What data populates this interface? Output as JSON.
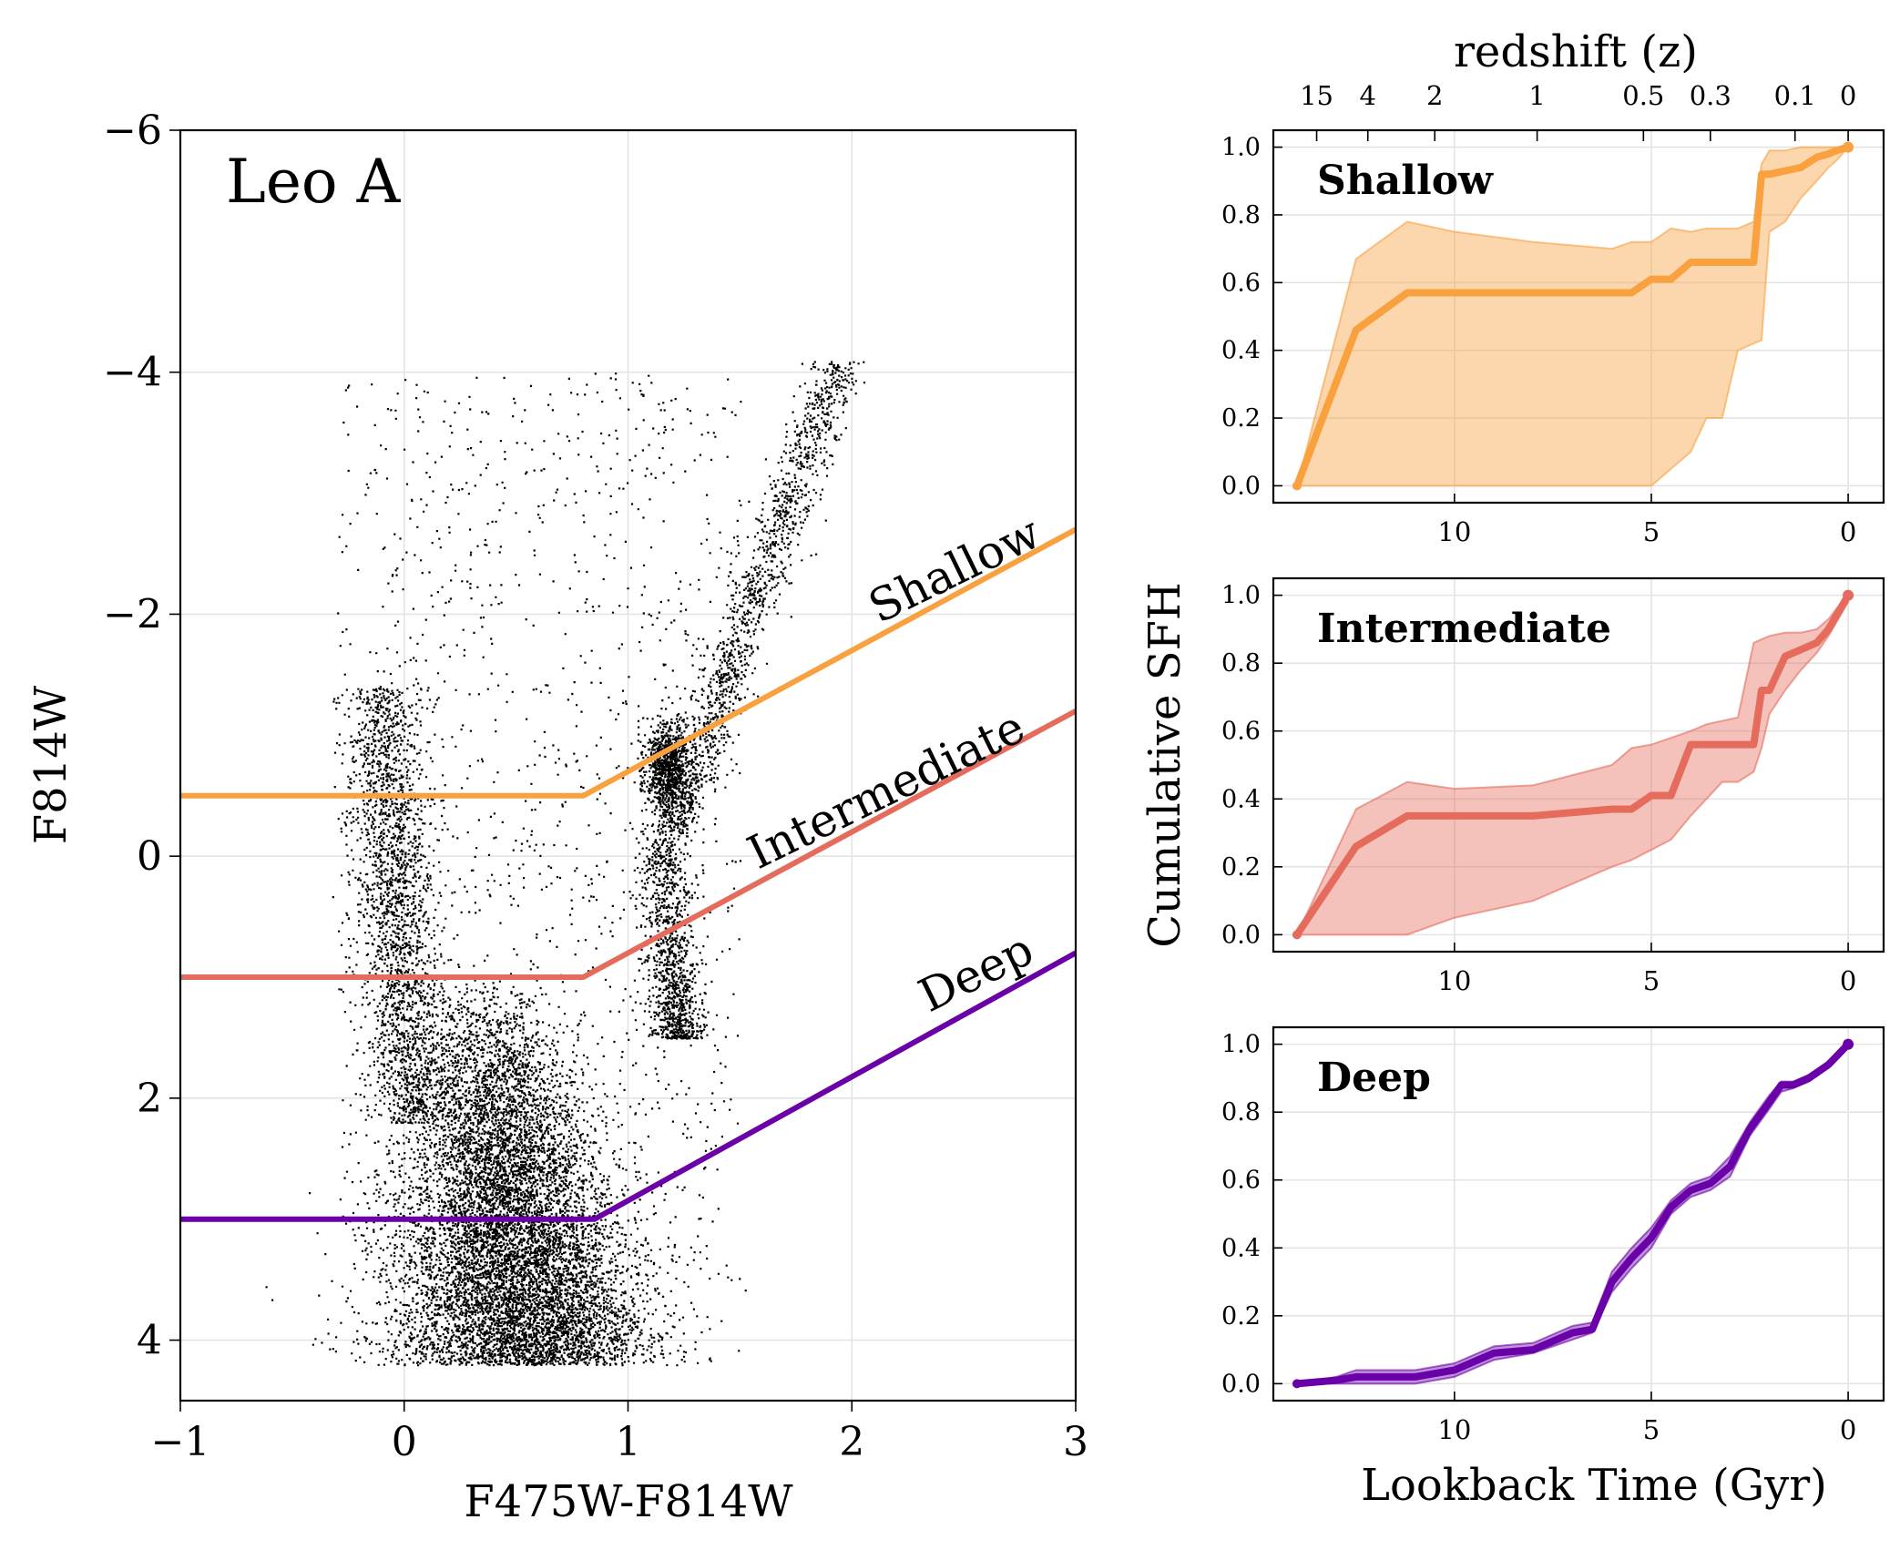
{
  "colors": {
    "shallow": "#F9A03F",
    "intermediate": "#E56B5D",
    "deep": "#6A00A8",
    "stars": "#000000"
  },
  "chart_data": [
    {
      "type": "scatter",
      "title": "Leo A",
      "xlabel": "F475W-F814W",
      "ylabel": "F814W",
      "xlim": [
        -1,
        3
      ],
      "ylim": [
        4.5,
        -6
      ],
      "y_inverted": true,
      "grid": true,
      "xticks": [
        "−1",
        "0",
        "1",
        "2",
        "3"
      ],
      "yticks": [
        "−6",
        "−4",
        "−2",
        "0",
        "2",
        "4"
      ],
      "density_features": [
        {
          "feature": "main sequence / lower RGB",
          "x": [
            0.1,
            0.9
          ],
          "y": [
            1.0,
            4.2
          ]
        },
        {
          "feature": "red clump",
          "x": [
            1.05,
            1.25
          ],
          "y": [
            -1.1,
            -0.4
          ]
        },
        {
          "feature": "red giant branch",
          "x": [
            1.1,
            2.2
          ],
          "y": [
            -4.0,
            1.5
          ]
        },
        {
          "feature": "blue plume",
          "x": [
            -0.2,
            0.1
          ],
          "y": [
            -1.2,
            2.0
          ]
        }
      ],
      "depth_cuts": [
        {
          "name": "Shallow",
          "knee_x": 0.8,
          "mag": -0.5,
          "end": [
            3.0,
            -2.7
          ]
        },
        {
          "name": "Intermediate",
          "knee_x": 0.8,
          "mag": 1.0,
          "end": [
            3.0,
            -1.2
          ]
        },
        {
          "name": "Deep",
          "knee_x": 0.85,
          "mag": 3.0,
          "end": [
            3.0,
            0.8
          ]
        }
      ]
    },
    {
      "type": "line",
      "ylabel": "Cumulative SFH",
      "xlabel": "Lookback Time (Gyr)",
      "top_axis_label": "redshift (z)",
      "redshift_ticks": [
        {
          "label": "15",
          "t": 13.5
        },
        {
          "label": "4",
          "t": 12.2
        },
        {
          "label": "2",
          "t": 10.5
        },
        {
          "label": "1",
          "t": 7.9
        },
        {
          "label": "0.5",
          "t": 5.2
        },
        {
          "label": "0.3",
          "t": 3.5
        },
        {
          "label": "0.1",
          "t": 1.35
        },
        {
          "label": "0",
          "t": 0.0
        }
      ],
      "xlim": [
        14.6,
        -0.9
      ],
      "ylim": [
        -0.05,
        1.05
      ],
      "xticks": [
        "10",
        "5",
        "0"
      ],
      "yticks": [
        "0.0",
        "0.2",
        "0.4",
        "0.6",
        "0.8",
        "1.0"
      ],
      "panels": [
        {
          "name": "Shallow",
          "x": [
            14.0,
            12.5,
            11.2,
            10.0,
            8.0,
            6.0,
            5.5,
            5.0,
            4.5,
            4.0,
            3.6,
            3.2,
            2.8,
            2.4,
            2.2,
            2.0,
            1.6,
            1.2,
            0.8,
            0.5,
            0.3,
            0.0
          ],
          "y": [
            0.0,
            0.46,
            0.57,
            0.57,
            0.57,
            0.57,
            0.57,
            0.61,
            0.61,
            0.66,
            0.66,
            0.66,
            0.66,
            0.66,
            0.92,
            0.92,
            0.93,
            0.94,
            0.97,
            0.98,
            0.99,
            1.0
          ],
          "lower": [
            0.0,
            0.0,
            0.0,
            0.0,
            0.0,
            0.0,
            0.0,
            0.0,
            0.05,
            0.1,
            0.2,
            0.2,
            0.4,
            0.42,
            0.43,
            0.75,
            0.78,
            0.85,
            0.9,
            0.94,
            0.96,
            1.0
          ],
          "upper": [
            0.0,
            0.67,
            0.78,
            0.75,
            0.72,
            0.7,
            0.72,
            0.72,
            0.76,
            0.75,
            0.76,
            0.76,
            0.76,
            0.78,
            0.95,
            0.99,
            0.99,
            1.0,
            1.0,
            1.0,
            1.0,
            1.0
          ]
        },
        {
          "name": "Intermediate",
          "x": [
            14.0,
            12.5,
            11.2,
            10.0,
            8.0,
            6.0,
            5.5,
            5.0,
            4.5,
            4.0,
            3.6,
            3.2,
            2.8,
            2.4,
            2.2,
            2.0,
            1.6,
            1.2,
            0.8,
            0.5,
            0.3,
            0.0
          ],
          "y": [
            0.0,
            0.26,
            0.35,
            0.35,
            0.35,
            0.37,
            0.37,
            0.41,
            0.41,
            0.56,
            0.56,
            0.56,
            0.56,
            0.56,
            0.72,
            0.72,
            0.82,
            0.84,
            0.86,
            0.9,
            0.94,
            1.0
          ],
          "lower": [
            0.0,
            0.0,
            0.0,
            0.05,
            0.1,
            0.2,
            0.22,
            0.25,
            0.28,
            0.35,
            0.4,
            0.45,
            0.45,
            0.48,
            0.55,
            0.65,
            0.72,
            0.78,
            0.83,
            0.88,
            0.92,
            0.98
          ],
          "upper": [
            0.0,
            0.37,
            0.45,
            0.43,
            0.44,
            0.5,
            0.55,
            0.56,
            0.58,
            0.6,
            0.62,
            0.63,
            0.64,
            0.86,
            0.87,
            0.88,
            0.89,
            0.89,
            0.9,
            0.93,
            0.96,
            1.0
          ]
        },
        {
          "name": "Deep",
          "x": [
            14.0,
            13.0,
            12.5,
            12.0,
            11.0,
            10.0,
            9.0,
            8.0,
            7.0,
            6.5,
            6.0,
            5.5,
            5.0,
            4.5,
            4.0,
            3.5,
            3.0,
            2.5,
            2.0,
            1.7,
            1.4,
            1.0,
            0.5,
            0.0
          ],
          "y": [
            0.0,
            0.01,
            0.02,
            0.02,
            0.02,
            0.04,
            0.09,
            0.1,
            0.15,
            0.16,
            0.3,
            0.37,
            0.43,
            0.52,
            0.57,
            0.59,
            0.64,
            0.75,
            0.83,
            0.88,
            0.88,
            0.9,
            0.94,
            1.0
          ],
          "lower": [
            0.0,
            0.0,
            0.0,
            0.0,
            0.0,
            0.02,
            0.07,
            0.09,
            0.13,
            0.15,
            0.27,
            0.34,
            0.4,
            0.5,
            0.55,
            0.57,
            0.61,
            0.73,
            0.81,
            0.86,
            0.87,
            0.89,
            0.93,
            1.0
          ],
          "upper": [
            0.0,
            0.02,
            0.04,
            0.04,
            0.04,
            0.06,
            0.11,
            0.12,
            0.17,
            0.18,
            0.33,
            0.4,
            0.46,
            0.54,
            0.59,
            0.61,
            0.67,
            0.77,
            0.85,
            0.89,
            0.89,
            0.91,
            0.95,
            1.0
          ]
        }
      ]
    }
  ]
}
